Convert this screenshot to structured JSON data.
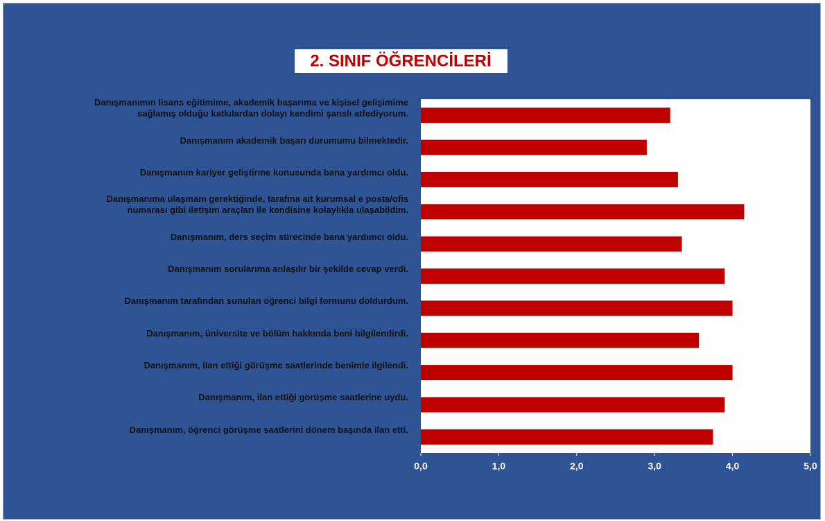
{
  "chart_data": {
    "type": "bar",
    "orientation": "horizontal",
    "title": "2. SINIF ÖĞRENCİLERİ",
    "categories": [
      "Danışmanımın lisans eğitimime, akademik başarıma ve kişisel gelişimime\nsağlamış olduğu katkılardan dolayı kendimi şanslı atfediyorum.",
      "Danışmanım akademik başarı durumumu bilmektedir.",
      "Danışmanım kariyer geliştirme konusunda bana yardımcı oldu.",
      "Danışmanıma ulaşmam gerektiğinde, tarafına ait kurumsal e posta/ofis\nnumarası gibi iletişim araçları ile kendisine kolaylıkla ulaşabildim.",
      "Danışmanım, ders seçim sürecinde bana yardımcı oldu.",
      "Danışmanım sorularıma anlaşılır bir şekilde cevap verdi.",
      "Danışmanım tarafından sunulan öğrenci bilgi formunu doldurdum.",
      "Danışmanım, üniversite ve bölüm hakkında beni bilgilendirdi.",
      "Danışmanım, ilan ettiği görüşme saatlerinde benimle ilgilendi.",
      "Danışmanım, ilan ettiği görüşme saatlerine uydu.",
      "Danışmanım, öğrenci görüşme saatlerini dönem başında ilan etti."
    ],
    "values": [
      3.2,
      2.9,
      3.3,
      4.15,
      3.35,
      3.9,
      4.0,
      3.57,
      4.0,
      3.9,
      3.75
    ],
    "color": "#c00000",
    "xlim": [
      0,
      5
    ],
    "xticks": [
      {
        "value": 0,
        "label": "0,0"
      },
      {
        "value": 1,
        "label": "1,0"
      },
      {
        "value": 2,
        "label": "2,0"
      },
      {
        "value": 3,
        "label": "3,0"
      },
      {
        "value": 4,
        "label": "4,0"
      },
      {
        "value": 5,
        "label": "5,0"
      }
    ]
  }
}
